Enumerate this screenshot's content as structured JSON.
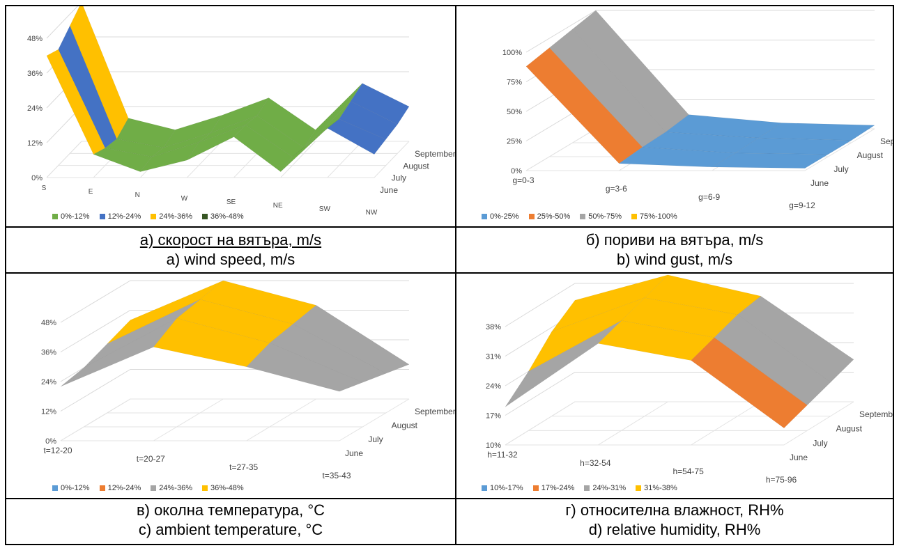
{
  "chart_data": [
    {
      "type": "surface",
      "x_categories": [
        "S",
        "E",
        "N",
        "W",
        "SE",
        "NE",
        "SW",
        "NW"
      ],
      "depth_categories": [
        "June",
        "July",
        "August",
        "September"
      ],
      "y_ticks": [
        "0%",
        "12%",
        "24%",
        "36%",
        "48%"
      ],
      "ylim": [
        0,
        48
      ],
      "legend": [
        "0%-12%",
        "12%-24%",
        "24%-36%",
        "36%-48%"
      ],
      "colors": [
        "#70ad47",
        "#4472c4",
        "#ffc000",
        "#375623"
      ],
      "values": [
        [
          42,
          8,
          2,
          6,
          14,
          2,
          17,
          8
        ],
        [
          40,
          6,
          3,
          8,
          14,
          3,
          16,
          9
        ],
        [
          44,
          5,
          2,
          7,
          13,
          2,
          18,
          10
        ],
        [
          48,
          8,
          4,
          9,
          15,
          4,
          20,
          12
        ]
      ],
      "caption_bg": "а) скорост на вятъра, m/s",
      "caption_en": "a) wind speed, m/s"
    },
    {
      "type": "surface",
      "x_categories": [
        "g=0-3",
        "g=3-6",
        "g=6-9",
        "g=9-12"
      ],
      "depth_categories": [
        "June",
        "July",
        "August",
        "September"
      ],
      "y_ticks": [
        "0%",
        "25%",
        "50%",
        "75%",
        "100%"
      ],
      "ylim": [
        0,
        100
      ],
      "legend": [
        "0%-25%",
        "25%-50%",
        "50%-75%",
        "75%-100%"
      ],
      "colors": [
        "#5b9bd5",
        "#ed7d31",
        "#a5a5a5",
        "#ffc000"
      ],
      "values": [
        [
          88,
          6,
          3,
          2
        ],
        [
          92,
          8,
          3,
          2
        ],
        [
          96,
          9,
          4,
          2
        ],
        [
          100,
          12,
          5,
          3
        ]
      ],
      "caption_bg": "б) пориви на вятъра, m/s",
      "caption_en": "b) wind gust, m/s"
    },
    {
      "type": "surface",
      "x_categories": [
        "t=12-20",
        "t=20-27",
        "t=27-35",
        "t=35-43"
      ],
      "depth_categories": [
        "June",
        "July",
        "August",
        "September"
      ],
      "y_ticks": [
        "0%",
        "12%",
        "24%",
        "36%",
        "48%"
      ],
      "ylim": [
        0,
        48
      ],
      "legend": [
        "0%-12%",
        "12%-24%",
        "24%-36%",
        "36%-48%"
      ],
      "colors": [
        "#5b9bd5",
        "#ed7d31",
        "#a5a5a5",
        "#ffc000"
      ],
      "values": [
        [
          22,
          38,
          30,
          20
        ],
        [
          24,
          44,
          34,
          18
        ],
        [
          28,
          46,
          36,
          16
        ],
        [
          32,
          48,
          38,
          14
        ]
      ],
      "caption_bg": "в) околна температура, °C",
      "caption_en": "c) ambient temperature, °C"
    },
    {
      "type": "surface",
      "x_categories": [
        "h=11-32",
        "h=32-54",
        "h=54-75",
        "h=75-96"
      ],
      "depth_categories": [
        "June",
        "July",
        "August",
        "September"
      ],
      "y_ticks": [
        "10%",
        "17%",
        "24%",
        "31%",
        "38%"
      ],
      "ylim": [
        10,
        38
      ],
      "legend": [
        "10%-17%",
        "17%-24%",
        "24%-31%",
        "31%-38%"
      ],
      "colors": [
        "#5b9bd5",
        "#ed7d31",
        "#a5a5a5",
        "#ffc000"
      ],
      "values": [
        [
          19,
          34,
          30,
          14
        ],
        [
          24,
          36,
          32,
          16
        ],
        [
          30,
          38,
          34,
          18
        ],
        [
          34,
          40,
          35,
          20
        ]
      ],
      "caption_bg": "г) относителна влажност, RH%",
      "caption_en": "d) relative humidity, RH%"
    }
  ]
}
